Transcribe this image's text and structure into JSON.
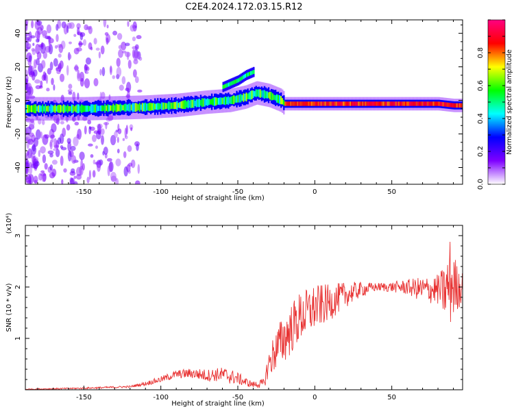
{
  "title": "C2E4.2024.172.03.15.R12",
  "chart_data": [
    {
      "type": "heatmap",
      "xlabel": "Height of straight line (km)",
      "ylabel": "Frequency (Hz)",
      "xlim": [
        -188,
        96
      ],
      "ylim": [
        -50,
        48
      ],
      "x_ticks": [
        -150,
        -100,
        -50,
        0,
        50
      ],
      "y_ticks": [
        -40,
        -20,
        0,
        20,
        40
      ],
      "colorbar": {
        "label": "Normalized spectral amplitude",
        "range": [
          0,
          1
        ],
        "ticks": [
          "0.0",
          "0.2",
          "0.4",
          "0.6",
          "0.8"
        ],
        "colors": [
          "#ffffff",
          "#7f00ff",
          "#0000ff",
          "#00ffff",
          "#00ff00",
          "#ffff00",
          "#ff0000",
          "#ff0080"
        ]
      },
      "ridge": {
        "x": [
          -188,
          -170,
          -150,
          -130,
          -110,
          -90,
          -70,
          -55,
          -45,
          -38,
          -30,
          -22,
          -20,
          0,
          20,
          40,
          60,
          80,
          90,
          96
        ],
        "y": [
          -5,
          -5,
          -5,
          -4.5,
          -4,
          -3,
          -1,
          0,
          2,
          4.5,
          3,
          0,
          -2,
          -2,
          -2,
          -2,
          -2,
          -2,
          -3,
          -3
        ]
      },
      "upper_branch": {
        "x": [
          -60,
          -55,
          -50,
          -45,
          -40
        ],
        "y": [
          8,
          10,
          12,
          15,
          17
        ]
      }
    },
    {
      "type": "line",
      "xlabel": "Height of straight line (km)",
      "ylabel": "SNR (10 * v/v)",
      "y_multiplier": "(x10⁴)",
      "xlim": [
        -188,
        96
      ],
      "ylim": [
        0,
        3.2
      ],
      "x_ticks": [
        -150,
        -100,
        -50,
        0,
        50
      ],
      "y_ticks": [
        1,
        2,
        3
      ],
      "color": "#e83232",
      "envelope": {
        "x": [
          -188,
          -150,
          -120,
          -110,
          -100,
          -90,
          -80,
          -70,
          -60,
          -50,
          -45,
          -40,
          -33,
          -30,
          -25,
          -20,
          -15,
          -10,
          -5,
          0,
          10,
          20,
          30,
          40,
          50,
          60,
          70,
          80,
          85,
          88,
          92,
          96
        ],
        "y": [
          0.01,
          0.03,
          0.06,
          0.12,
          0.2,
          0.3,
          0.32,
          0.28,
          0.3,
          0.22,
          0.15,
          0.1,
          0.12,
          0.5,
          0.8,
          1.0,
          1.2,
          1.4,
          1.5,
          1.6,
          1.7,
          1.85,
          1.95,
          2.0,
          2.0,
          2.0,
          1.95,
          1.95,
          1.9,
          2.1,
          2.0,
          2.0
        ]
      },
      "amplitude": {
        "x": [
          -188,
          -120,
          -100,
          -70,
          -55,
          -40,
          -33,
          -28,
          -20,
          -10,
          0,
          10,
          20,
          30,
          40,
          50,
          60,
          70,
          80,
          85,
          88,
          92,
          96
        ],
        "y": [
          0.01,
          0.02,
          0.06,
          0.12,
          0.15,
          0.06,
          0.1,
          0.35,
          0.5,
          0.5,
          0.45,
          0.35,
          0.25,
          0.15,
          0.08,
          0.1,
          0.15,
          0.25,
          0.3,
          0.55,
          0.9,
          0.5,
          0.3
        ]
      }
    }
  ]
}
